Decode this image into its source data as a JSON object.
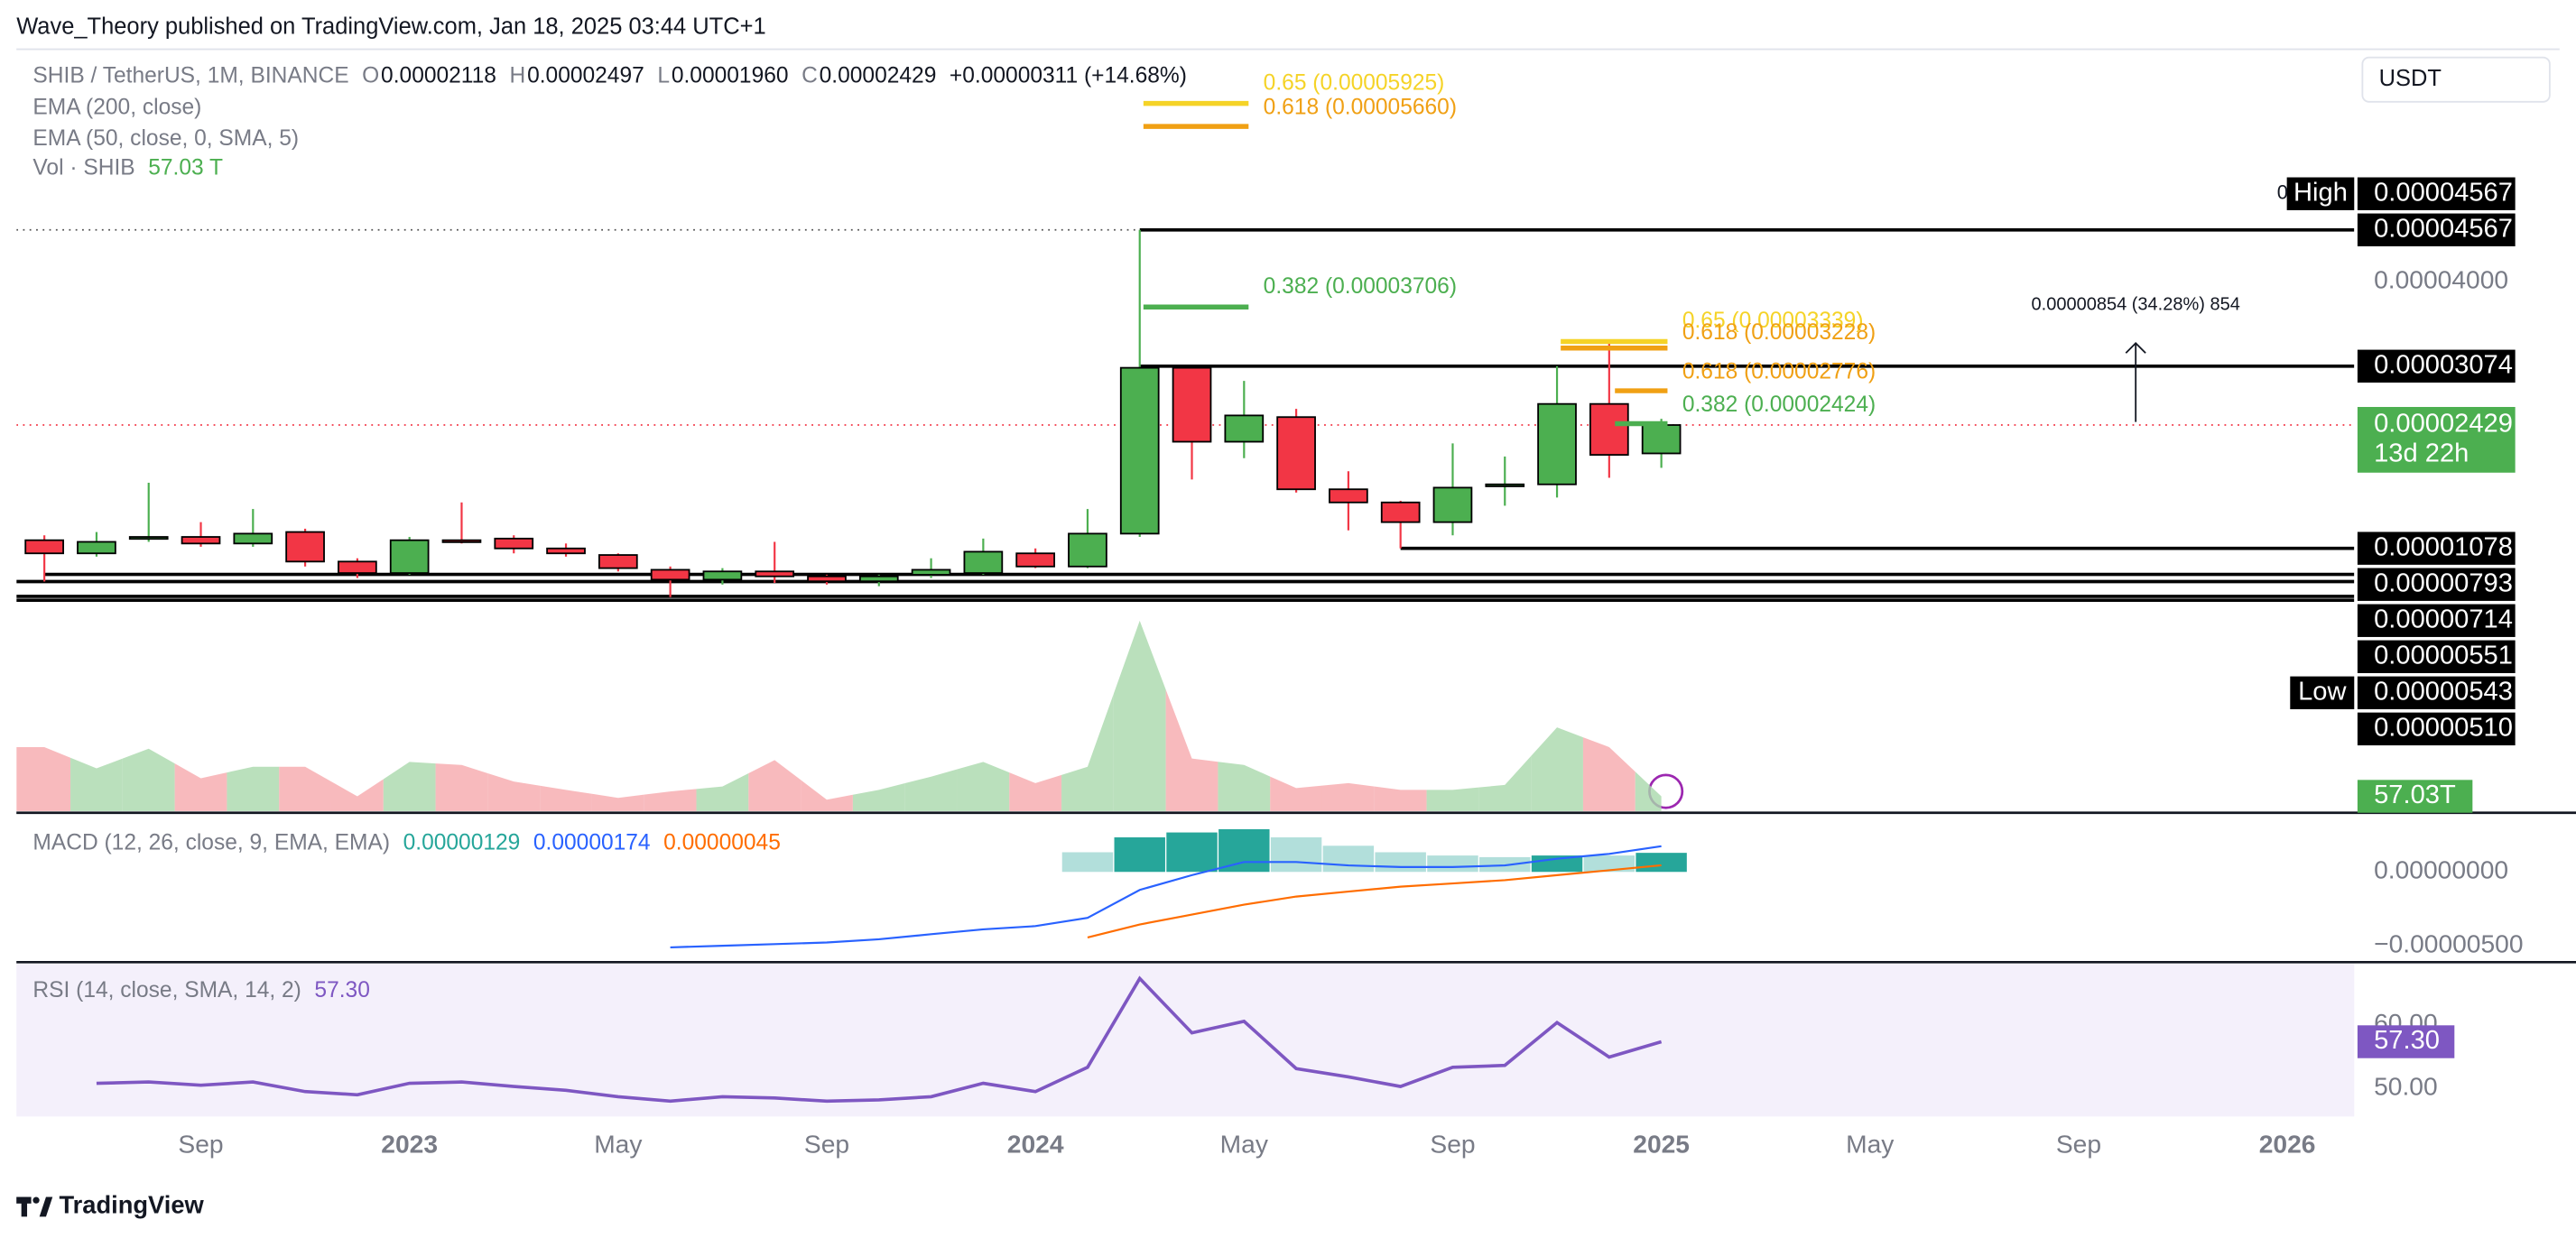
{
  "header": "Wave_Theory published on TradingView.com, Jan 18, 2025 03:44 UTC+1",
  "currency": "USDT",
  "footer": "TradingView",
  "chart_data": [
    {
      "type": "candlestick",
      "title": "SHIB / TetherUS, 1M, BINANCE",
      "ohlc_legend": [
        {
          "key": "O",
          "value": "0.00002118"
        },
        {
          "key": "H",
          "value": "0.00002497"
        },
        {
          "key": "L",
          "value": "0.00001960"
        },
        {
          "key": "C",
          "value": "0.00002429"
        }
      ],
      "change": "+0.00000311 (+14.68%)",
      "indicators": [
        "EMA (200, close)",
        "EMA (50, close, 0, SMA, 5)"
      ],
      "x": [
        "2022-06",
        "2022-07",
        "2022-08",
        "2022-09",
        "2022-10",
        "2022-11",
        "2022-12",
        "2023-01",
        "2023-02",
        "2023-03",
        "2023-04",
        "2023-05",
        "2023-06",
        "2023-07",
        "2023-08",
        "2023-09",
        "2023-10",
        "2023-11",
        "2023-12",
        "2024-01",
        "2024-02",
        "2024-03",
        "2024-04",
        "2024-05",
        "2024-06",
        "2024-07",
        "2024-08",
        "2024-09",
        "2024-10",
        "2024-11",
        "2024-12",
        "2025-01"
      ],
      "open": [
        1.167e-05,
        1.023e-05,
        1.185e-05,
        1.203e-05,
        1.131e-05,
        1.257e-05,
        9.33e-06,
        8.07e-06,
        1.167e-05,
        1.185e-05,
        1.077e-05,
        1.005e-05,
        8.43e-06,
        7.35e-06,
        8.25e-06,
        7.71e-06,
        7.17e-06,
        7.89e-06,
        8.07e-06,
        1.023e-05,
        8.79e-06,
        1.239e-05,
        3.056e-05,
        2.246e-05,
        2.516e-05,
        1.725e-05,
        1.581e-05,
        1.365e-05,
        1.761e-05,
        1.779e-05,
        2.66e-05,
        2.118e-05
      ],
      "high": [
        1.221e-05,
        1.257e-05,
        1.797e-05,
        1.365e-05,
        1.509e-05,
        1.293e-05,
        9.69e-06,
        1.203e-05,
        1.581e-05,
        1.221e-05,
        1.131e-05,
        1.023e-05,
        8.79e-06,
        8.61e-06,
        1.149e-05,
        7.89e-06,
        7.89e-06,
        9.69e-06,
        1.185e-05,
        1.077e-05,
        1.509e-05,
        4.567e-05,
        3.056e-05,
        2.912e-05,
        2.606e-05,
        1.923e-05,
        1.599e-05,
        2.228e-05,
        2.084e-05,
        3.074e-05,
        3.362e-05,
        2.497e-05
      ],
      "low": [
        7.14e-06,
        9.87e-06,
        1.149e-05,
        1.095e-05,
        1.095e-05,
        8.79e-06,
        7.53e-06,
        7.89e-06,
        1.131e-05,
        1.023e-05,
        9.87e-06,
        8.25e-06,
        5.43e-06,
        6.81e-06,
        6.99e-06,
        6.81e-06,
        6.63e-06,
        7.53e-06,
        7.89e-06,
        8.61e-06,
        8.61e-06,
        1.203e-05,
        1.833e-05,
        2.066e-05,
        1.689e-05,
        1.275e-05,
        1.078e-05,
        1.221e-05,
        1.545e-05,
        1.635e-05,
        1.851e-05,
        1.96e-05
      ],
      "close": [
        1.023e-05,
        1.149e-05,
        1.203e-05,
        1.131e-05,
        1.239e-05,
        9.33e-06,
        8.07e-06,
        1.167e-05,
        1.149e-05,
        1.077e-05,
        1.023e-05,
        8.61e-06,
        7.35e-06,
        8.25e-06,
        7.71e-06,
        7.17e-06,
        7.71e-06,
        8.43e-06,
        1.041e-05,
        8.79e-06,
        1.239e-05,
        3.056e-05,
        2.246e-05,
        2.534e-05,
        1.725e-05,
        1.581e-05,
        1.365e-05,
        1.743e-05,
        1.779e-05,
        2.66e-05,
        2.102e-05,
        2.429e-05
      ],
      "up_color": "#4caf50",
      "down_color": "#f23645",
      "ylim": [
        -1.819e-05,
        6.546e-05
      ],
      "yticks": [
        {
          "value": 4e-05,
          "label": "0.00004000"
        }
      ],
      "xlim": [
        "2022-05",
        "2026-02"
      ],
      "xticks": [
        {
          "value": "2022-09",
          "label": "Sep"
        },
        {
          "value": "2023-01",
          "label": "2023"
        },
        {
          "value": "2023-05",
          "label": "May"
        },
        {
          "value": "2023-09",
          "label": "Sep"
        },
        {
          "value": "2024-01",
          "label": "2024"
        },
        {
          "value": "2024-05",
          "label": "May"
        },
        {
          "value": "2024-09",
          "label": "Sep"
        },
        {
          "value": "2025-01",
          "label": "2025"
        },
        {
          "value": "2025-05",
          "label": "May"
        },
        {
          "value": "2025-09",
          "label": "Sep"
        },
        {
          "value": "2026-01",
          "label": "2026"
        }
      ],
      "high_mark": {
        "value": 4.567e-05,
        "label": "0.00004567",
        "tag": "High",
        "prefix": "0"
      },
      "last": {
        "value": 2.429e-05,
        "label": "0.00002429",
        "countdown": "13d 22h"
      },
      "levels": [
        {
          "value": 4.567e-05,
          "label": "0.00004567",
          "from": "2024-03"
        },
        {
          "value": 3.074e-05,
          "label": "0.00003074",
          "from": "2024-03"
        },
        {
          "value": 1.078e-05,
          "label": "0.00001078",
          "from": "2024-08"
        },
        {
          "value": 7.93e-06,
          "label": "0.00000793",
          "from": "2022-06"
        },
        {
          "value": 7.14e-06,
          "label": "0.00000714"
        },
        {
          "value": 5.51e-06,
          "label": "0.00000551"
        },
        {
          "value": 5.43e-06,
          "label": "0.00000543",
          "tag": "Low"
        },
        {
          "value": 5.1e-06,
          "label": "0.00000510"
        }
      ],
      "fib": [
        {
          "text": "0.65 (0.00005925)",
          "color": "#f5d327"
        },
        {
          "text": "0.618 (0.00005660)",
          "color": "#f0a014"
        },
        {
          "text": "0.382 (0.00003706)",
          "color": "#4caf50"
        },
        {
          "text": "0.65 (0.00003339)",
          "color": "#f5d327"
        },
        {
          "text": "0.618 (0.00003228)",
          "color": "#f0a014"
        },
        {
          "text": "0.618 (0.00002776)",
          "color": "#f0a014"
        },
        {
          "text": "0.382 (0.00002424)",
          "color": "#4caf50"
        }
      ],
      "measure": "0.00000854 (34.28%) 854"
    },
    {
      "type": "area",
      "title": "Vol · SHIB",
      "legend_value": "57.03 T",
      "x": [
        "2022-06",
        "2022-07",
        "2022-08",
        "2022-09",
        "2022-10",
        "2022-11",
        "2022-12",
        "2023-01",
        "2023-02",
        "2023-03",
        "2023-04",
        "2023-05",
        "2023-06",
        "2023-07",
        "2023-08",
        "2023-09",
        "2023-10",
        "2023-11",
        "2023-12",
        "2024-01",
        "2024-02",
        "2024-03",
        "2024-04",
        "2024-05",
        "2024-06",
        "2024-07",
        "2024-08",
        "2024-09",
        "2024-10",
        "2024-11",
        "2024-12",
        "2025-01"
      ],
      "values": [
        247,
        165,
        241,
        127,
        171,
        171,
        57,
        190,
        178,
        114,
        82,
        51,
        76,
        95,
        197,
        44,
        82,
        133,
        190,
        108,
        171,
        735,
        203,
        178,
        89,
        108,
        82,
        82,
        101,
        323,
        247,
        57.03
      ],
      "ylim": [
        0,
        786
      ],
      "colors": {
        "up": "#a9d8ab",
        "down": "#f6a9ac"
      },
      "current": {
        "value": 57.03,
        "label": "57.03T"
      }
    },
    {
      "type": "macd",
      "title": "MACD (12, 26, close, 9, EMA, EMA)",
      "legend_values": [
        "0.00000129",
        "0.00000174",
        "0.00000045"
      ],
      "x": [
        "2022-06",
        "2022-07",
        "2022-08",
        "2022-09",
        "2022-10",
        "2022-11",
        "2022-12",
        "2023-01",
        "2023-02",
        "2023-03",
        "2023-04",
        "2023-05",
        "2023-06",
        "2023-07",
        "2023-08",
        "2023-09",
        "2023-10",
        "2023-11",
        "2023-12",
        "2024-01",
        "2024-02",
        "2024-03",
        "2024-04",
        "2024-05",
        "2024-06",
        "2024-07",
        "2024-08",
        "2024-09",
        "2024-10",
        "2024-11",
        "2024-12",
        "2025-01"
      ],
      "histogram": [
        null,
        null,
        null,
        null,
        null,
        null,
        null,
        null,
        null,
        null,
        null,
        null,
        null,
        null,
        null,
        null,
        null,
        null,
        null,
        null,
        1.33e-06,
        2.34e-06,
        2.67e-06,
        2.89e-06,
        2.34e-06,
        1.77e-06,
        1.33e-06,
        1.11e-06,
        1e-06,
        1.11e-06,
        1.11e-06,
        1.29e-06
      ],
      "histogram_colors": [
        null,
        null,
        null,
        null,
        null,
        null,
        null,
        null,
        null,
        null,
        null,
        null,
        null,
        null,
        null,
        null,
        null,
        null,
        null,
        null,
        "#b2dfdb",
        "#26a69a",
        "#26a69a",
        "#26a69a",
        "#b2dfdb",
        "#b2dfdb",
        "#b2dfdb",
        "#b2dfdb",
        "#b2dfdb",
        "#26a69a",
        "#b2dfdb",
        "#26a69a"
      ],
      "macd": [
        null,
        null,
        null,
        null,
        null,
        null,
        null,
        null,
        null,
        null,
        null,
        null,
        -5.11e-06,
        -5e-06,
        -4.89e-06,
        -4.78e-06,
        -4.56e-06,
        -4.22e-06,
        -3.89e-06,
        -3.67e-06,
        -3.11e-06,
        -1.22e-06,
        -2.2e-07,
        6.7e-07,
        6.7e-07,
        4.4e-07,
        3.3e-07,
        3.3e-07,
        4.4e-07,
        8.9e-07,
        1.22e-06,
        1.74e-06
      ],
      "signal": [
        null,
        null,
        null,
        null,
        null,
        null,
        null,
        null,
        null,
        null,
        null,
        null,
        null,
        null,
        null,
        null,
        null,
        null,
        null,
        null,
        -4.44e-06,
        -3.56e-06,
        -2.89e-06,
        -2.22e-06,
        -1.67e-06,
        -1.33e-06,
        -1e-06,
        -7.8e-07,
        -5.6e-07,
        -2.2e-07,
        1.1e-07,
        4.5e-07
      ],
      "histogram_color": "#26a69a",
      "macd_color": "#2962ff",
      "signal_color": "#ff6d00",
      "ylim": [
        -6e-06,
        3.56e-06
      ],
      "yticks": [
        {
          "value": 0,
          "label": "0.00000000"
        },
        {
          "value": -5e-06,
          "label": "−0.00000500"
        }
      ]
    },
    {
      "type": "line",
      "title": "RSI (14, close, SMA, 14, 2)",
      "legend_value": "57.30",
      "x": [
        "2022-06",
        "2022-07",
        "2022-08",
        "2022-09",
        "2022-10",
        "2022-11",
        "2022-12",
        "2023-01",
        "2023-02",
        "2023-03",
        "2023-04",
        "2023-05",
        "2023-06",
        "2023-07",
        "2023-08",
        "2023-09",
        "2023-10",
        "2023-11",
        "2023-12",
        "2024-01",
        "2024-02",
        "2024-03",
        "2024-04",
        "2024-05",
        "2024-06",
        "2024-07",
        "2024-08",
        "2024-09",
        "2024-10",
        "2024-11",
        "2024-12",
        "2025-01"
      ],
      "values": [
        null,
        50.8,
        51.0,
        50.5,
        51.0,
        49.5,
        49.0,
        50.8,
        51.0,
        50.3,
        49.7,
        48.7,
        48.0,
        48.7,
        48.5,
        48.0,
        48.2,
        48.7,
        50.8,
        49.5,
        53.3,
        67.2,
        58.7,
        60.5,
        53.1,
        51.8,
        50.3,
        53.3,
        53.6,
        60.3,
        54.9,
        57.3
      ],
      "color": "#7e57c2",
      "ylim": [
        45.6,
        69.5
      ],
      "yticks": [
        {
          "value": 50,
          "label": "50.00"
        },
        {
          "value": 60,
          "label": "60.00"
        }
      ],
      "current": {
        "value": 57.3,
        "label": "57.30"
      }
    }
  ]
}
